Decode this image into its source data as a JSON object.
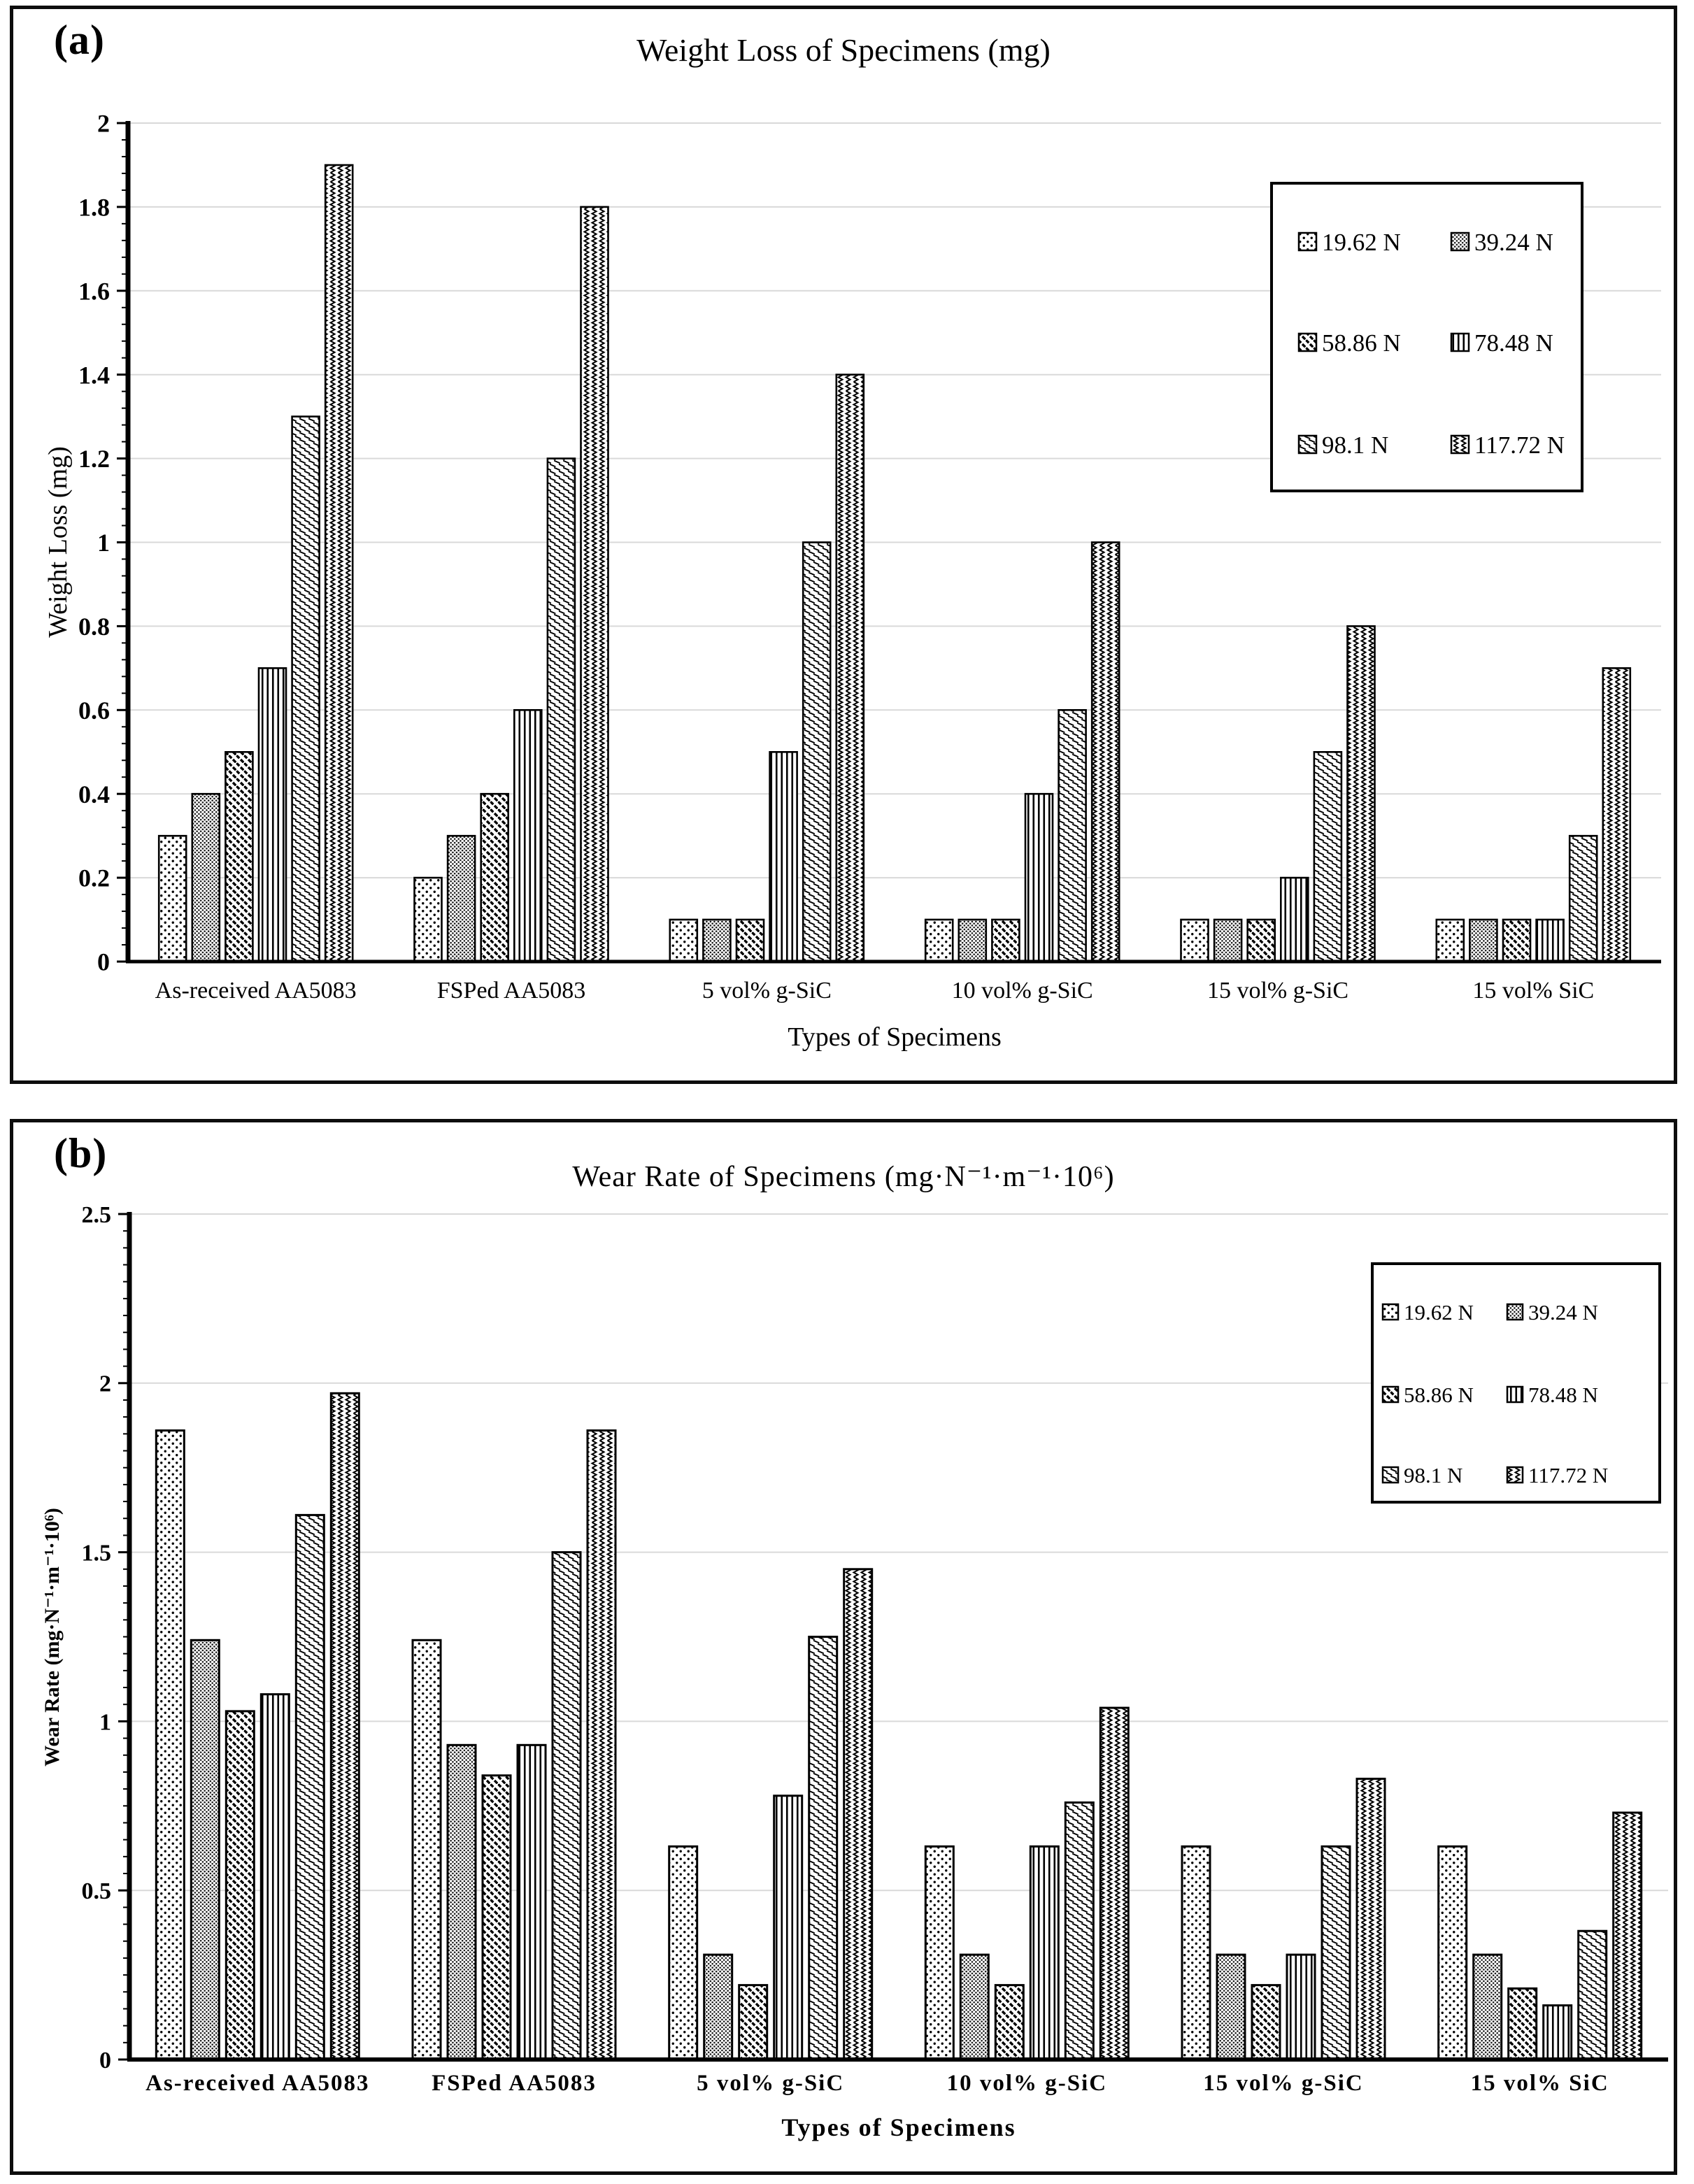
{
  "figure": {
    "description_colors": {
      "bar_fill": "#ffffff",
      "bar_stroke": "#000000",
      "gridline": "#d9d9d9",
      "text": "#000000"
    }
  },
  "chart_data": [
    {
      "id": "weight-loss",
      "panel_label": "(a)",
      "type": "bar",
      "title": "Weight Loss of Specimens (mg)",
      "xlabel": "Types of Specimens",
      "ylabel": "Weight Loss (mg)",
      "ylim": [
        0,
        2
      ],
      "ytick_step": 0.2,
      "ytick_minor": 0.04,
      "grid": true,
      "legend_position": "upper-right",
      "categories": [
        "As-received AA5083",
        "FSPed AA5083",
        "5 vol% g-SiC",
        "10 vol% g-SiC",
        "15 vol% g-SiC",
        "15 vol% SiC"
      ],
      "series": [
        {
          "name": "19.62 N",
          "pattern": "dots-sparse",
          "values": [
            0.3,
            0.2,
            0.1,
            0.1,
            0.1,
            0.1
          ]
        },
        {
          "name": "39.24 N",
          "pattern": "dots-dense",
          "values": [
            0.4,
            0.3,
            0.1,
            0.1,
            0.1,
            0.1
          ]
        },
        {
          "name": "58.86 N",
          "pattern": "diagonal-dashed",
          "values": [
            0.5,
            0.4,
            0.1,
            0.1,
            0.1,
            0.1
          ]
        },
        {
          "name": "78.48 N",
          "pattern": "vertical-lines",
          "values": [
            0.7,
            0.6,
            0.5,
            0.4,
            0.2,
            0.1
          ]
        },
        {
          "name": "98.1 N",
          "pattern": "dash-rows",
          "values": [
            1.3,
            1.2,
            1.0,
            0.6,
            0.5,
            0.3
          ]
        },
        {
          "name": "117.72 N",
          "pattern": "zigzag",
          "values": [
            1.9,
            1.8,
            1.4,
            1.0,
            0.8,
            0.7
          ]
        }
      ]
    },
    {
      "id": "wear-rate",
      "panel_label": "(b)",
      "type": "bar",
      "title": "Wear Rate of Specimens (mg·N⁻¹·m⁻¹·10⁶)",
      "xlabel": "Types of Specimens",
      "ylabel": "Wear Rate (mg·N⁻¹·m⁻¹·10⁶)",
      "ylim": [
        0,
        2.5
      ],
      "ytick_step": 0.5,
      "ytick_minor": 0.05,
      "grid": true,
      "legend_position": "upper-right",
      "categories": [
        "As-received AA5083",
        "FSPed AA5083",
        "5 vol% g-SiC",
        "10 vol% g-SiC",
        "15 vol% g-SiC",
        "15 vol% SiC"
      ],
      "series": [
        {
          "name": "19.62 N",
          "pattern": "dots-sparse",
          "values": [
            1.86,
            1.24,
            0.63,
            0.63,
            0.63,
            0.63
          ]
        },
        {
          "name": "39.24 N",
          "pattern": "dots-dense",
          "values": [
            1.24,
            0.93,
            0.31,
            0.31,
            0.31,
            0.31
          ]
        },
        {
          "name": "58.86 N",
          "pattern": "diagonal-dashed",
          "values": [
            1.03,
            0.84,
            0.22,
            0.22,
            0.22,
            0.21
          ]
        },
        {
          "name": "78.48 N",
          "pattern": "vertical-lines",
          "values": [
            1.08,
            0.93,
            0.78,
            0.63,
            0.31,
            0.16
          ]
        },
        {
          "name": "98.1 N",
          "pattern": "dash-rows",
          "values": [
            1.61,
            1.5,
            1.25,
            0.76,
            0.63,
            0.38
          ]
        },
        {
          "name": "117.72 N",
          "pattern": "zigzag",
          "values": [
            1.97,
            1.86,
            1.45,
            1.04,
            0.83,
            0.73
          ]
        }
      ]
    }
  ]
}
